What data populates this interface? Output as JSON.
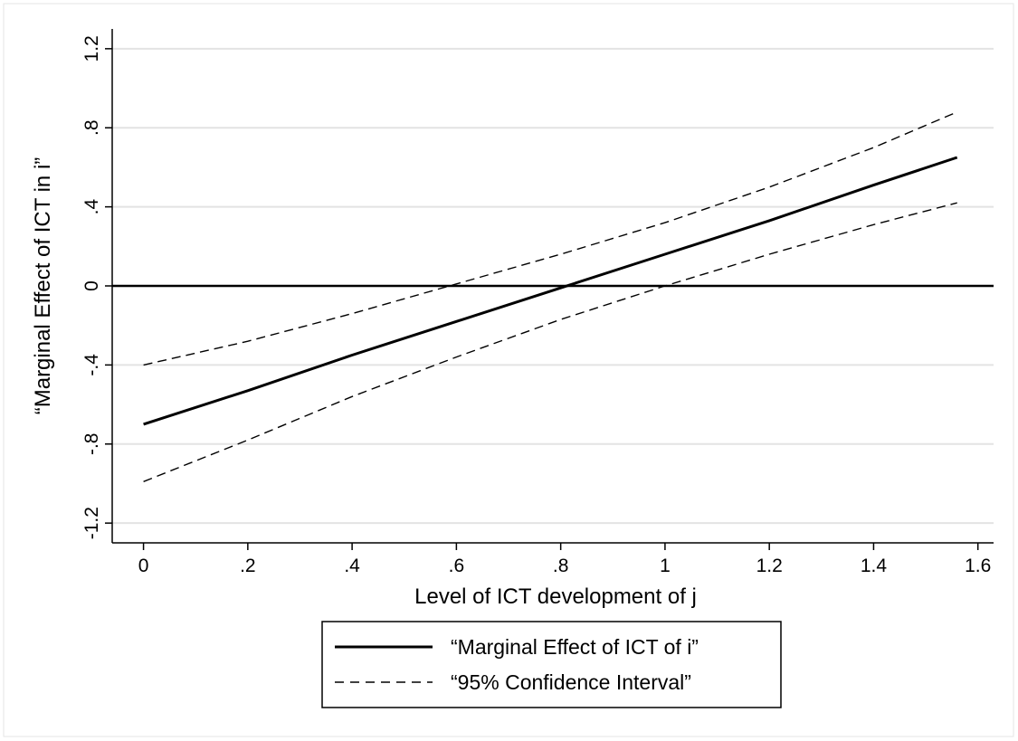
{
  "chart_data": {
    "type": "line",
    "xlabel": "Level of ICT development of j",
    "ylabel": "“Marginal Effect of ICT in i”",
    "xlim": [
      -0.06,
      1.63
    ],
    "ylim": [
      -1.3,
      1.3
    ],
    "xticks": [
      {
        "value": 0,
        "label": "0"
      },
      {
        "value": 0.2,
        "label": ".2"
      },
      {
        "value": 0.4,
        "label": ".4"
      },
      {
        "value": 0.6,
        "label": ".6"
      },
      {
        "value": 0.8,
        "label": ".8"
      },
      {
        "value": 1.0,
        "label": "1"
      },
      {
        "value": 1.2,
        "label": "1.2"
      },
      {
        "value": 1.4,
        "label": "1.4"
      },
      {
        "value": 1.6,
        "label": "1.6"
      }
    ],
    "yticks": [
      {
        "value": -1.2,
        "label": "-1.2"
      },
      {
        "value": -0.8,
        "label": "-.8"
      },
      {
        "value": -0.4,
        "label": "-.4"
      },
      {
        "value": 0,
        "label": "0"
      },
      {
        "value": 0.4,
        "label": ".4"
      },
      {
        "value": 0.8,
        "label": ".8"
      },
      {
        "value": 1.2,
        "label": "1.2"
      }
    ],
    "grid": true,
    "reference_line_y": 0,
    "legend_position": "bottom",
    "series": [
      {
        "name": "“Marginal Effect of ICT of i”",
        "style": "solid",
        "color": "#000000",
        "x": [
          0,
          0.2,
          0.4,
          0.6,
          0.8,
          1.0,
          1.2,
          1.4,
          1.56
        ],
        "y": [
          -0.7,
          -0.53,
          -0.35,
          -0.18,
          -0.01,
          0.16,
          0.33,
          0.51,
          0.65
        ]
      },
      {
        "name": "“95% Confidence Interval”",
        "style": "dashed",
        "color": "#000000",
        "x": [
          0,
          0.2,
          0.4,
          0.6,
          0.8,
          1.0,
          1.2,
          1.4,
          1.56
        ],
        "y": [
          -0.4,
          -0.28,
          -0.14,
          0.01,
          0.16,
          0.32,
          0.5,
          0.7,
          0.88
        ]
      },
      {
        "name": "",
        "style": "dashed",
        "color": "#000000",
        "x": [
          0,
          0.2,
          0.4,
          0.6,
          0.8,
          1.0,
          1.2,
          1.4,
          1.56
        ],
        "y": [
          -0.99,
          -0.78,
          -0.56,
          -0.36,
          -0.17,
          0.0,
          0.16,
          0.31,
          0.42
        ]
      }
    ]
  }
}
